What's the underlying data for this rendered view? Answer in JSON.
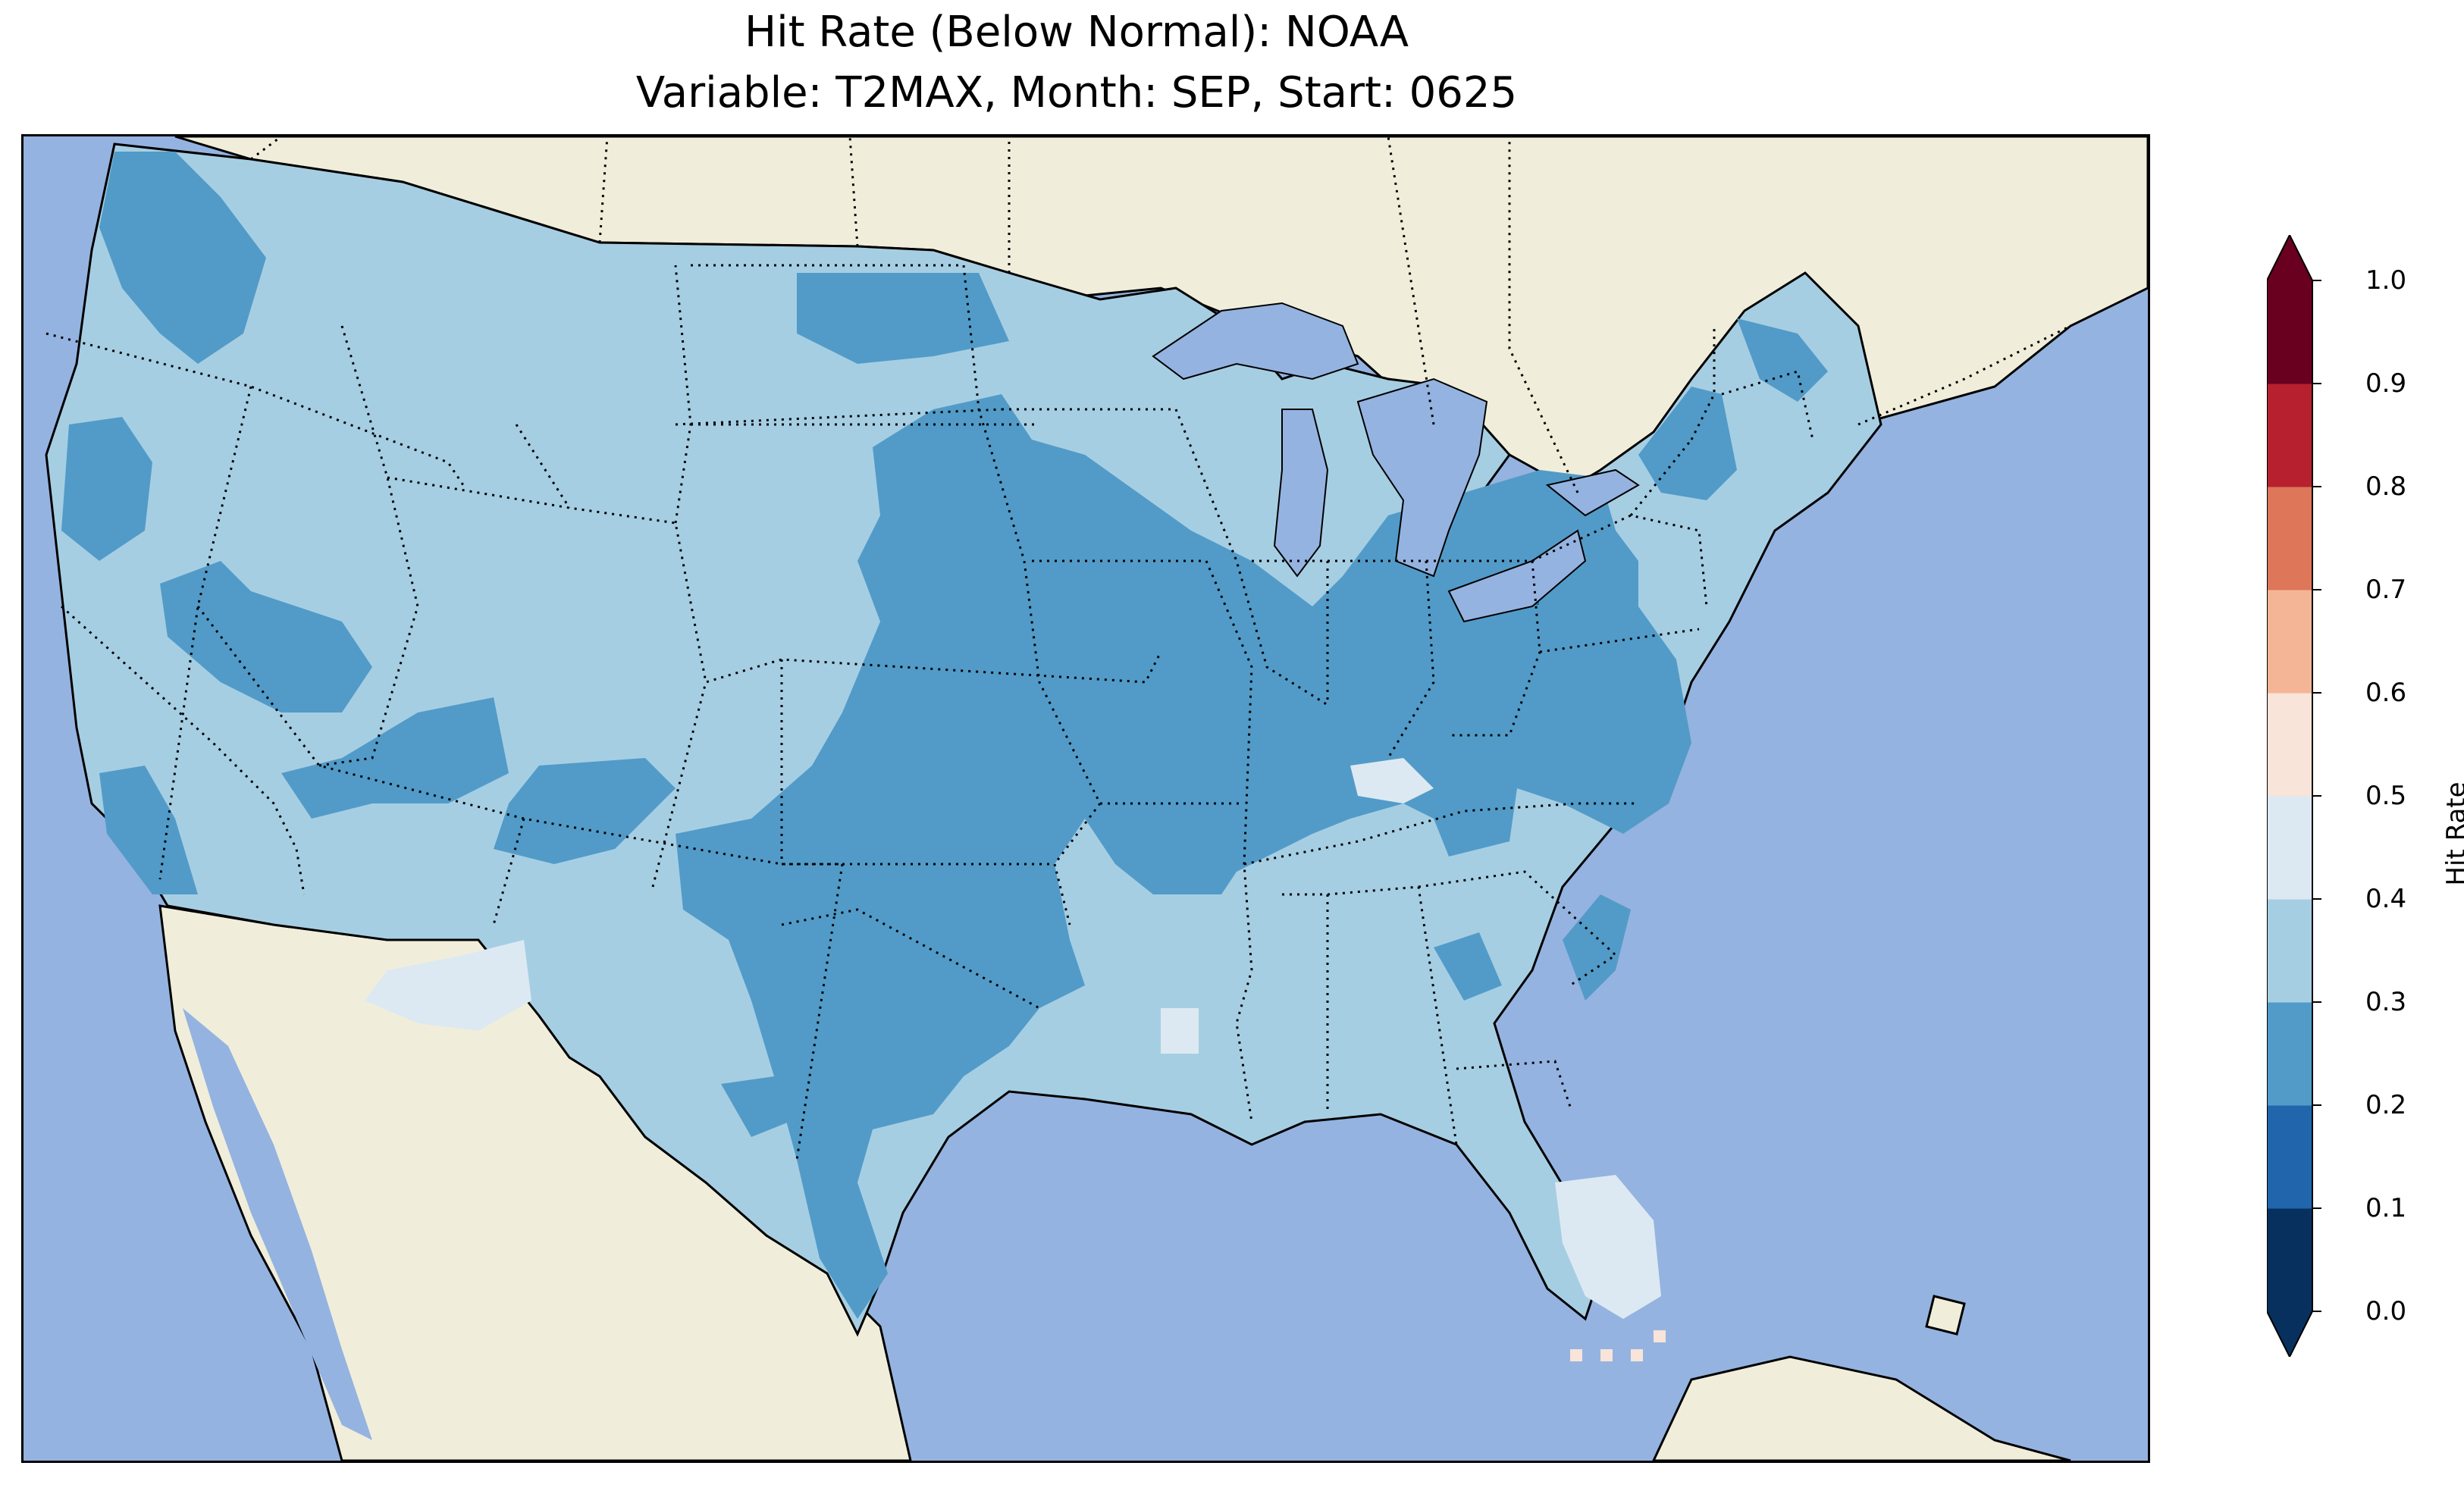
{
  "title": {
    "line1": "Hit Rate (Below Normal): NOAA",
    "line2": "Variable: T2MAX, Month: SEP, Start: 0625"
  },
  "colors": {
    "ocean": "#95b3e0",
    "land": "#f0eedb",
    "us_base": "#a6cee3",
    "lakes": "#95b3e0"
  },
  "chart_data": {
    "type": "heatmap",
    "region": "Contiguous United States",
    "colorbar": {
      "label": "Hit Rate",
      "ticks": [
        "0.0",
        "0.1",
        "0.2",
        "0.3",
        "0.4",
        "0.5",
        "0.6",
        "0.7",
        "0.8",
        "0.9",
        "1.0"
      ],
      "levels": [
        0.0,
        0.1,
        0.2,
        0.3,
        0.4,
        0.5,
        0.6,
        0.7,
        0.8,
        0.9,
        1.0
      ],
      "colors": [
        "#08305e",
        "#2166ac",
        "#529bc8",
        "#a6cee3",
        "#dde9f2",
        "#f8e4d8",
        "#f4b596",
        "#de7659",
        "#b7202e",
        "#6a0020"
      ],
      "extend": "both"
    },
    "dominant_bins": [
      "0.2-0.3",
      "0.3-0.4",
      "0.4-0.5"
    ]
  }
}
